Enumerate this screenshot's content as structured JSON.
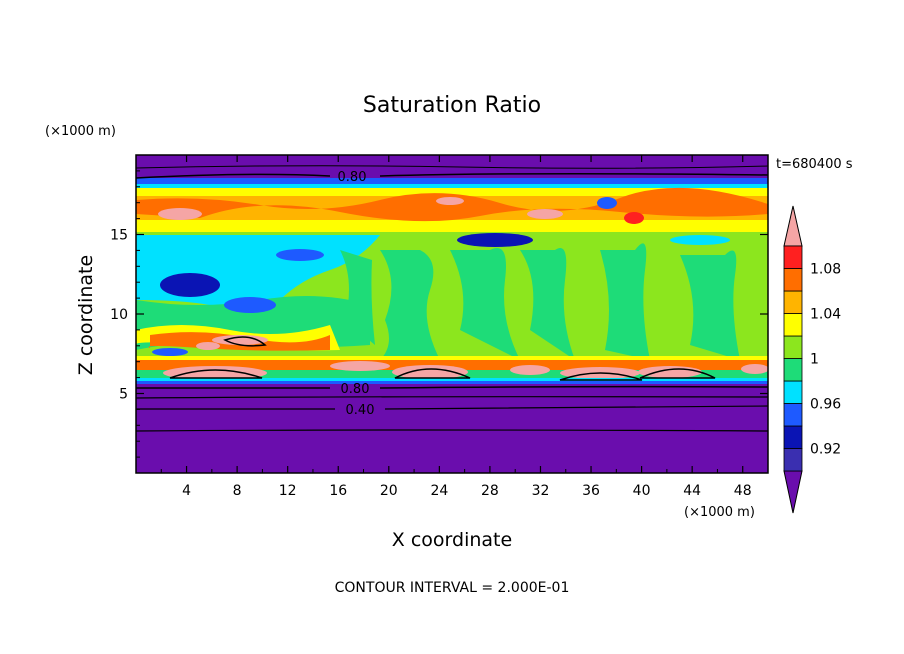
{
  "chart_data": {
    "type": "heatmap",
    "title": "Saturation Ratio",
    "xlabel": "X coordinate",
    "ylabel": "Z coordinate",
    "x_unit": "(×1000 m)",
    "z_unit": "(×1000 m)",
    "time_label": "t=680400 s",
    "footer": "CONTOUR INTERVAL = 2.000E-01",
    "xlim": [
      0,
      50
    ],
    "ylim": [
      0,
      20
    ],
    "x_ticks": [
      4,
      8,
      12,
      16,
      20,
      24,
      28,
      32,
      36,
      40,
      44,
      48
    ],
    "y_ticks": [
      5,
      10,
      15
    ],
    "x_tick_labels": [
      "4",
      "8",
      "12",
      "16",
      "20",
      "24",
      "28",
      "32",
      "36",
      "40",
      "44",
      "48"
    ],
    "y_tick_labels": [
      "5",
      "10",
      "15"
    ],
    "colorbar": {
      "levels": [
        0.9,
        0.92,
        0.94,
        0.96,
        0.98,
        1.0,
        1.02,
        1.04,
        1.06,
        1.08,
        1.1
      ],
      "colors": [
        "#6a0dad",
        "#3a2fb0",
        "#0a14b4",
        "#1e5aff",
        "#00e1ff",
        "#1edc78",
        "#8ce61e",
        "#ffff00",
        "#ffb400",
        "#ff6e00",
        "#ff2020",
        "#f5a5a5"
      ],
      "tick_labels": [
        "0.92",
        "0.96",
        "1",
        "1.04",
        "1.08"
      ],
      "tick_values": [
        0.92,
        0.96,
        1.0,
        1.04,
        1.08
      ],
      "extend": "both"
    },
    "contour_labels": [
      {
        "text": "0.80",
        "x": 17.6,
        "z": 18.7
      },
      {
        "text": "0.80",
        "x": 17.2,
        "z": 5.3
      },
      {
        "text": "0.40",
        "x": 17.6,
        "z": 4.1
      }
    ]
  }
}
